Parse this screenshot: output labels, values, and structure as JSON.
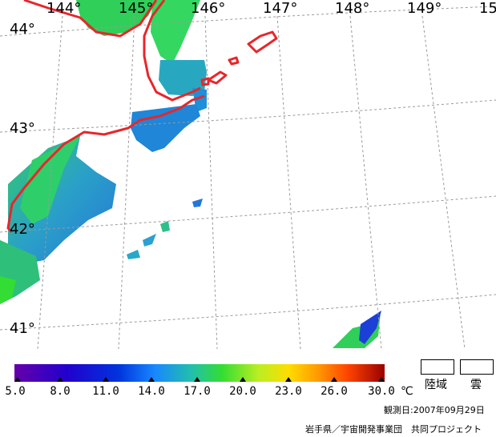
{
  "map": {
    "longitude_labels": [
      "144°",
      "145°",
      "146°",
      "147°",
      "148°",
      "149°",
      "15"
    ],
    "latitude_labels": [
      "44°",
      "43°",
      "42°",
      "41°"
    ],
    "coastline_color": "#e8262b",
    "grid_color": "#9a9a9a"
  },
  "colorbar": {
    "tick_labels": [
      "5.0",
      "8.0",
      "11.0",
      "14.0",
      "17.0",
      "20.0",
      "23.0",
      "26.0",
      "30.0"
    ],
    "unit": "℃",
    "colors": [
      "#6600aa",
      "#0000cc",
      "#1060e0",
      "#22aaff",
      "#22c080",
      "#33dd33",
      "#99ee22",
      "#ffee00",
      "#ffaa00",
      "#ff5500",
      "#cc0000",
      "#990000"
    ]
  },
  "legend": {
    "land_label": "陸域",
    "cloud_label": "雲"
  },
  "footer": {
    "observation_date": "観測日:2007年09月29日",
    "credit": "岩手県／宇宙開発事業団　共同プロジェクト"
  }
}
